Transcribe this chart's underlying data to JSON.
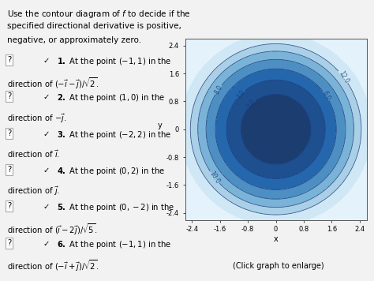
{
  "xlim": [
    -2.6,
    2.6
  ],
  "ylim": [
    -2.6,
    2.6
  ],
  "xlabel": "x",
  "ylabel": "y",
  "contour_levels": [
    2.0,
    4.0,
    6.0,
    8.0,
    10.0,
    12.0
  ],
  "xticks": [
    -2.4,
    -1.6,
    -0.8,
    0,
    0.8,
    1.6,
    2.4
  ],
  "yticks": [
    -2.4,
    -1.6,
    -0.8,
    0,
    0.8,
    1.6,
    2.4
  ],
  "fill_colors": [
    "#1b3d70",
    "#1e4f8f",
    "#2567ad",
    "#4d8fc2",
    "#7ab3d8",
    "#aad0e8",
    "#d0e8f5",
    "#e8f4fb"
  ],
  "contour_line_color": "#1a3a7a",
  "caption": "(Click graph to enlarge)",
  "bg_color": "#f2f2f2",
  "plot_bg": "#e4f2fb"
}
